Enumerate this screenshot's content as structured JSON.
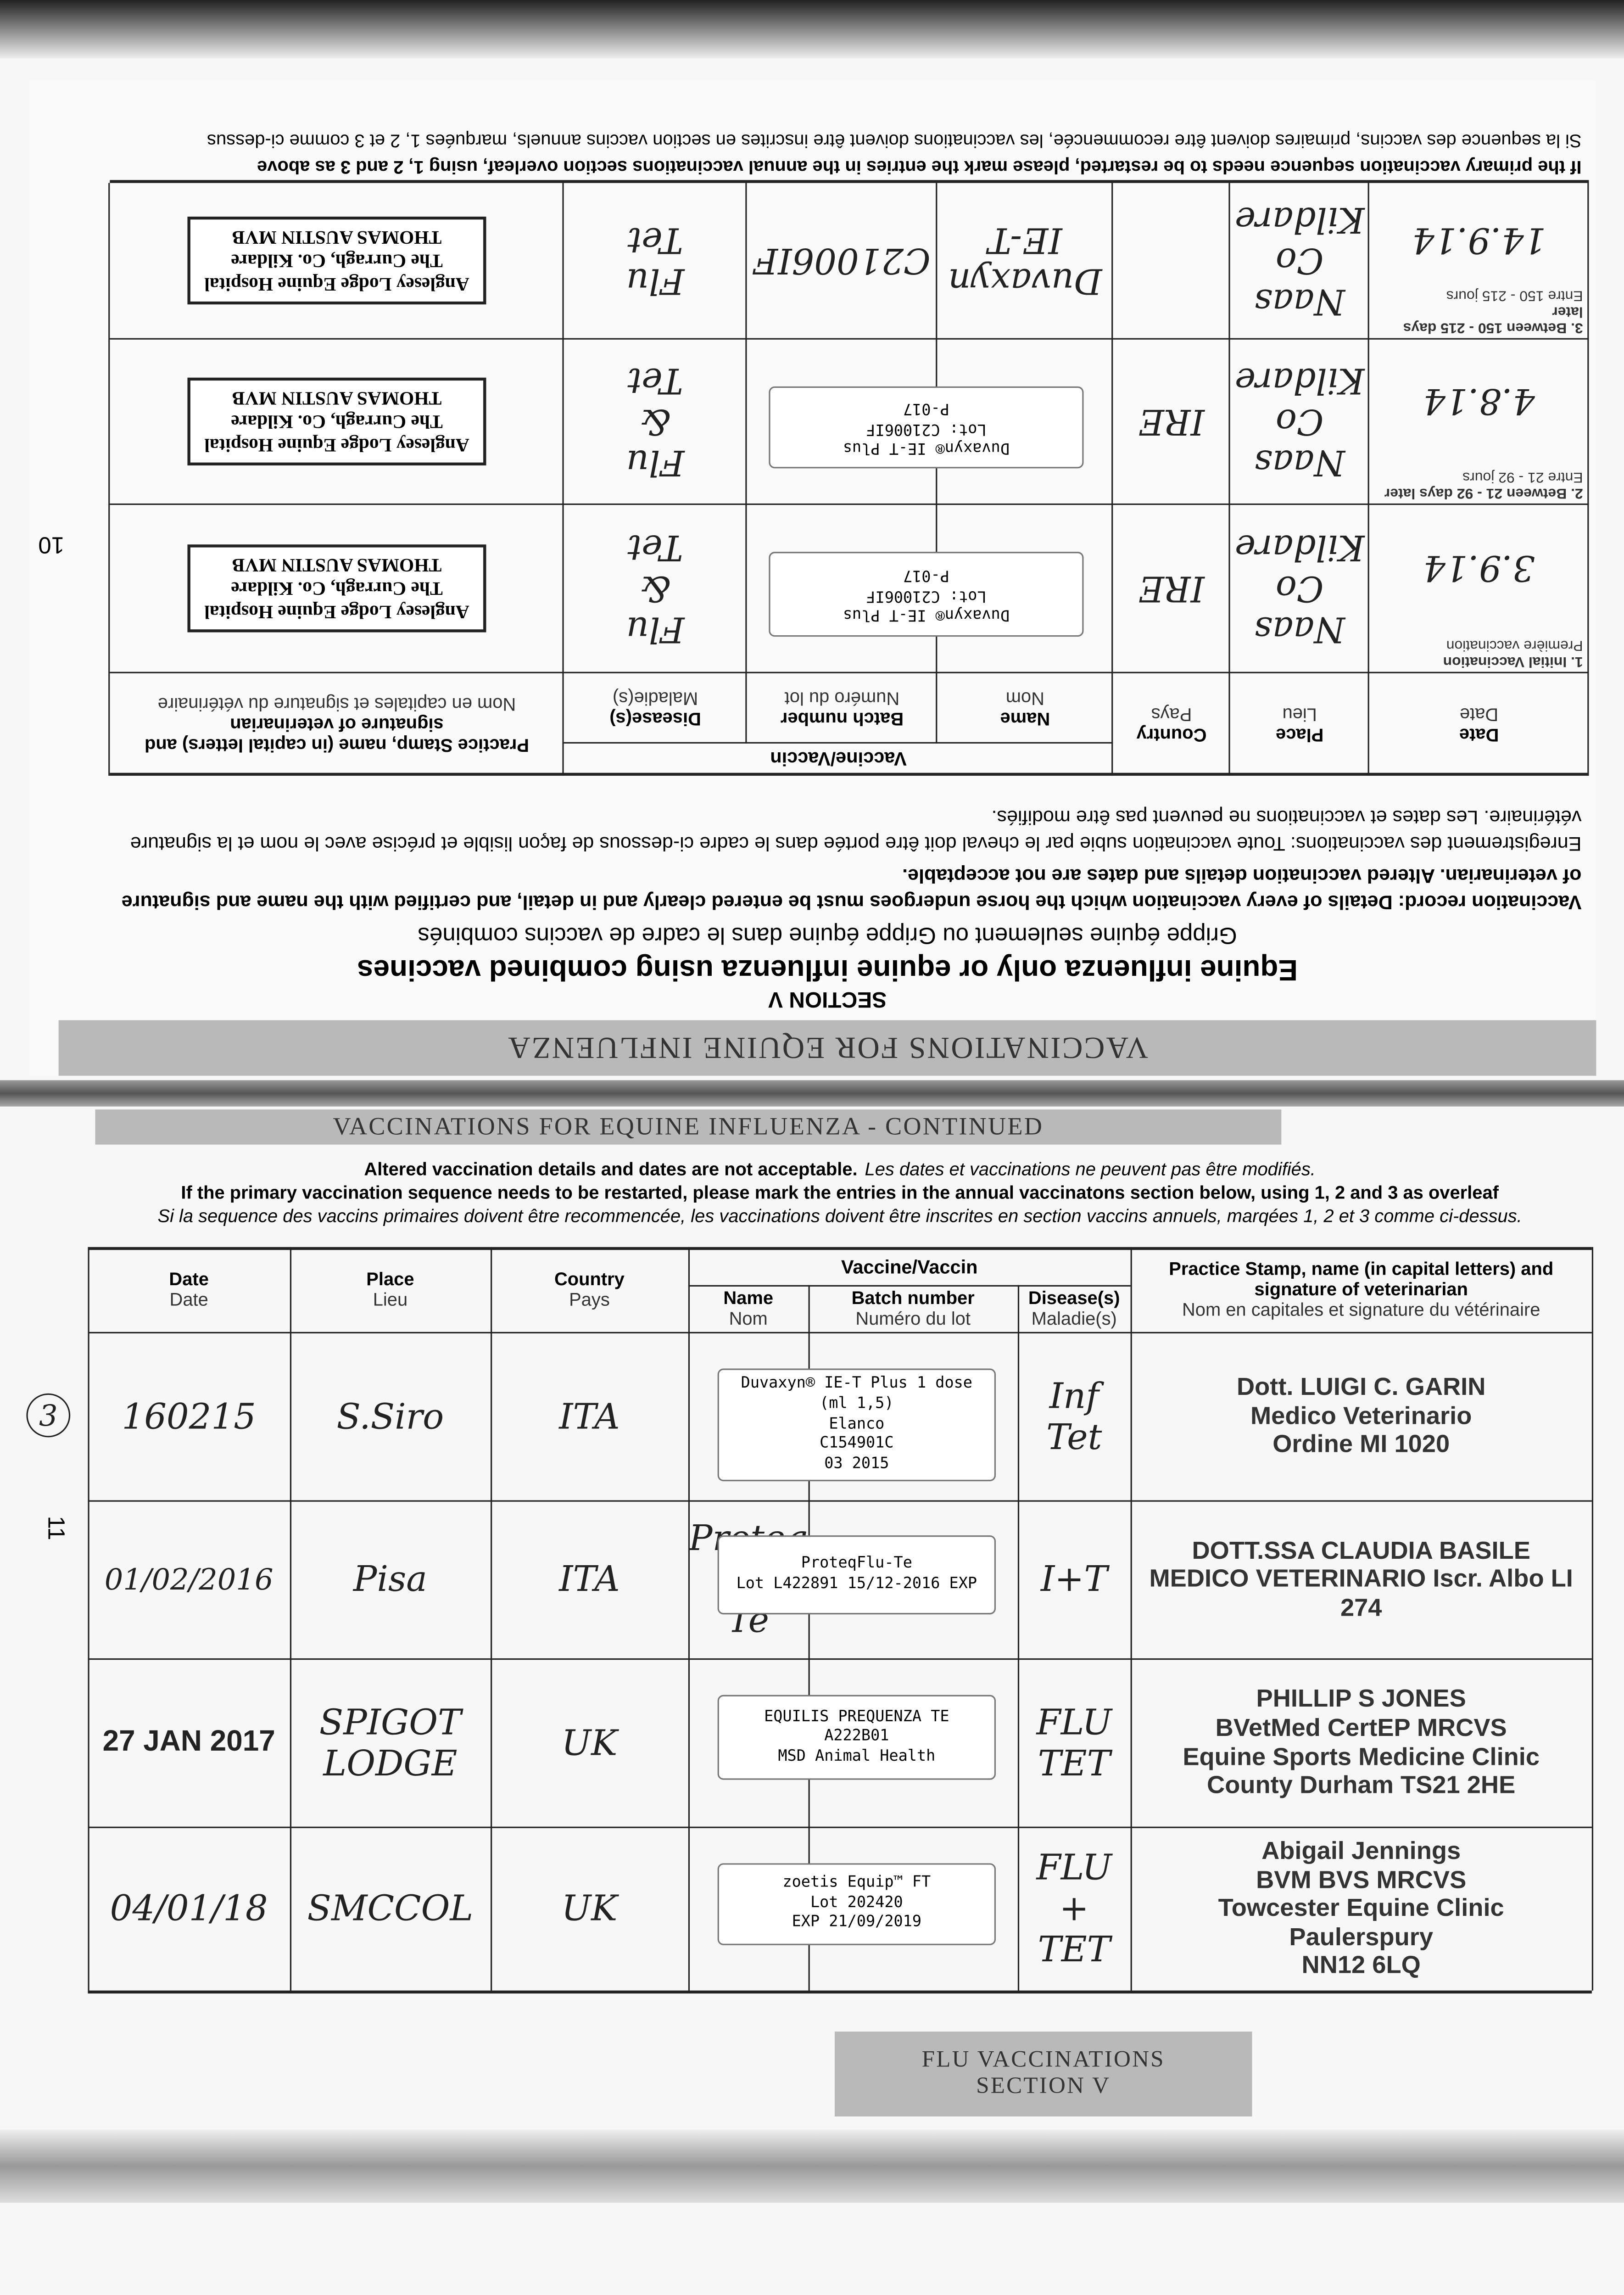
{
  "top_page": {
    "page_number": "10",
    "header": "VACCINATIONS FOR EQUINE INFLUENZA",
    "section": "SECTION V",
    "title": "Equine influenza only or equine influenza using combined vaccines",
    "title_fr": "Grippe équine seulement ou Grippe équine dans le cadre de vaccins combinés",
    "record_en": "Vaccination record: Details of every vaccination which the horse undergoes must be entered clearly and in detail, and certified with the name and signature of veterinarian. Altered vaccination details and dates are not acceptable.",
    "record_fr": "Enregistrement des vaccinations: Toute vaccination subie par le cheval doit être portée dans le cadre ci-dessous de façon lisible et précise avec le nom et la signature vétérinaire. Les dates et vaccinations ne peuvent pas être modifiés.",
    "table": {
      "vaccine_group": "Vaccine/Vaccin",
      "headers": [
        {
          "en": "Date",
          "fr": "Date"
        },
        {
          "en": "Place",
          "fr": "Lieu"
        },
        {
          "en": "Country",
          "fr": "Pays"
        },
        {
          "en": "Name",
          "fr": "Nom"
        },
        {
          "en": "Batch number",
          "fr": "Numéro du lot"
        },
        {
          "en": "Disease(s)",
          "fr": "Maladie(s)"
        },
        {
          "en": "Practice Stamp, name (in capital letters) and signature of veterinarian",
          "fr": "Nom en capitales et signature du vétérinaire"
        }
      ],
      "rows": [
        {
          "label": "1. Initial Vaccination",
          "label_fr": "Première vaccination",
          "date": "3.9.14",
          "place": [
            "Naas",
            "Co Kildare"
          ],
          "country": "IRE",
          "sticker": [
            "Duvaxyn® IE-T Plus",
            "Lot: C21006IF",
            "P-017"
          ],
          "disease": [
            "Flu",
            "&",
            "Tet"
          ],
          "stamp": [
            "Anglesey Lodge Equine Hospital",
            "The Curragh, Co. Kildare",
            "THOMAS AUSTIN MVB"
          ]
        },
        {
          "label": "2. Between 21 - 92 days later",
          "label_fr": "Entre 21 - 92 jours",
          "date": "4.8.14",
          "place": [
            "Naas",
            "Co Kildare"
          ],
          "country": "IRE",
          "sticker": [
            "Duvaxyn® IE-T Plus",
            "Lot: C21006IF",
            "P-017"
          ],
          "disease": [
            "Flu",
            "&",
            "Tet"
          ],
          "stamp": [
            "Anglesey Lodge Equine Hospital",
            "The Curragh, Co. Kildare",
            "THOMAS AUSTIN MVB"
          ]
        },
        {
          "label": "3. Between 150 - 215 days later",
          "label_fr": "Entre 150 - 215 jours",
          "date": "14.9.14",
          "place": [
            "Naas",
            "Co Kildare"
          ],
          "name": "Duvaxyn IE-T",
          "batch": "C21006IF",
          "disease": [
            "Flu",
            "Tet"
          ],
          "stamp": [
            "Anglesey Lodge Equine Hospital",
            "The Curragh, Co. Kildare",
            "THOMAS AUSTIN MVB"
          ]
        }
      ]
    },
    "notes": [
      "If the primary vaccination sequence needs to be restarted, please mark the entries in the annual vaccinations section overleaf, using 1, 2 and 3 as above",
      "Si la sequence des vaccins, primaires doivent être recommencée, les vaccinations doivent être inscrites en section vaccins annuels, marquées 1, 2 et 3 comme ci-dessus"
    ]
  },
  "bottom_page": {
    "page_number": "11",
    "header": "VACCINATIONS FOR EQUINE INFLUENZA - CONTINUED",
    "notes": {
      "altered": "Altered vaccination details and dates are not acceptable.",
      "altered_fr": "Les dates et vaccinations ne peuvent pas être modifiés.",
      "restart": "If the primary vaccination sequence needs to be restarted, please mark the entries in the annual vaccinatons section below, using 1, 2 and 3 as overleaf",
      "restart_fr": "Si la sequence des vaccins primaires doivent être recommencée, les vaccinations doivent être inscrites en section vaccins annuels, marqées 1, 2 et 3 comme ci-dessus."
    },
    "table": {
      "vaccine_group": "Vaccine/Vaccin",
      "headers": [
        {
          "en": "Date",
          "fr": "Date"
        },
        {
          "en": "Place",
          "fr": "Lieu"
        },
        {
          "en": "Country",
          "fr": "Pays"
        },
        {
          "en": "Name",
          "fr": "Nom"
        },
        {
          "en": "Batch number",
          "fr": "Numéro du lot"
        },
        {
          "en": "Disease(s)",
          "fr": "Maladie(s)"
        },
        {
          "en": "Practice Stamp, name (in capital letters) and signature of veterinarian",
          "fr": "Nom en capitales et signature du vétérinaire"
        }
      ],
      "rows": [
        {
          "marker": "3",
          "date": "160215",
          "place": "S.Siro",
          "country": "ITA",
          "sticker": [
            "Duvaxyn® IE-T Plus 1 dose (ml 1,5)",
            "Elanco",
            "C154901C",
            "03 2015"
          ],
          "disease": [
            "Inf",
            "Tet"
          ],
          "stamp": [
            "Dott. LUIGI C. GARIN",
            "Medico Veterinario",
            "Ordine MI 1020"
          ]
        },
        {
          "date": "01/02/2016",
          "place": "Pisa",
          "country": "ITA",
          "name": [
            "Proteq",
            "Flu Te"
          ],
          "sticker": [
            "ProteqFlu-Te",
            "Lot L422891 15/12-2016 EXP"
          ],
          "disease": "I+T",
          "stamp": [
            "DOTT.SSA CLAUDIA BASILE",
            "MEDICO VETERINARIO Iscr. Albo LI 274"
          ]
        },
        {
          "date": "27 JAN 2017",
          "place": [
            "SPIGOT",
            "LODGE"
          ],
          "country": "UK",
          "sticker": [
            "EQUILIS PREQUENZA TE",
            "A222B01",
            "MSD Animal Health"
          ],
          "disease": [
            "FLU",
            "TET"
          ],
          "stamp": [
            "PHILLIP S JONES",
            "BVetMed CertEP MRCVS",
            "Equine Sports Medicine Clinic",
            "County Durham TS21 2HE"
          ]
        },
        {
          "date": "04/01/18",
          "place": "SMCCOL",
          "country": "UK",
          "sticker": [
            "zoetis Equip™ FT",
            "Lot 202420",
            "EXP 21/09/2019"
          ],
          "disease": [
            "FLU",
            "+ TET"
          ],
          "stamp": [
            "Abigail Jennings",
            "BVM BVS MRCVS",
            "Towcester Equine Clinic",
            "Paulerspury",
            "NN12 6LQ"
          ]
        }
      ]
    },
    "footer": [
      "FLU VACCINATIONS",
      "SECTION V"
    ]
  }
}
